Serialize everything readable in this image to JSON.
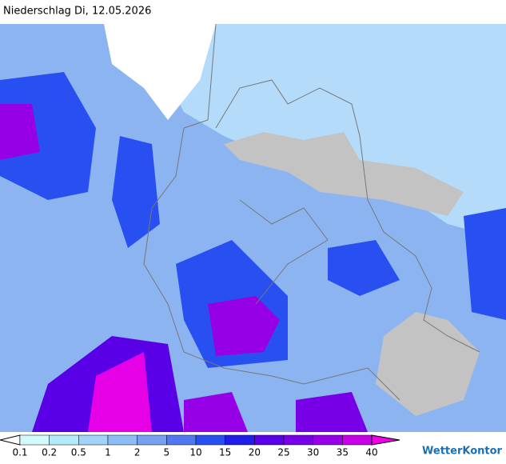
{
  "header": {
    "title": "Niederschlag Di, 12.05.2026"
  },
  "legend": {
    "ticks": [
      0.1,
      0.2,
      0.5,
      1,
      2,
      5,
      10,
      15,
      20,
      25,
      30,
      35,
      40
    ],
    "colors": [
      "#ffffff",
      "#d2fafa",
      "#b4ebfa",
      "#a0d2fa",
      "#8cbef5",
      "#78a0f0",
      "#5078f0",
      "#2850f0",
      "#1e1ee6",
      "#5a00e6",
      "#7800e6",
      "#9600e6",
      "#c800e6",
      "#f000e6"
    ]
  },
  "brand": "WetterKontor"
}
